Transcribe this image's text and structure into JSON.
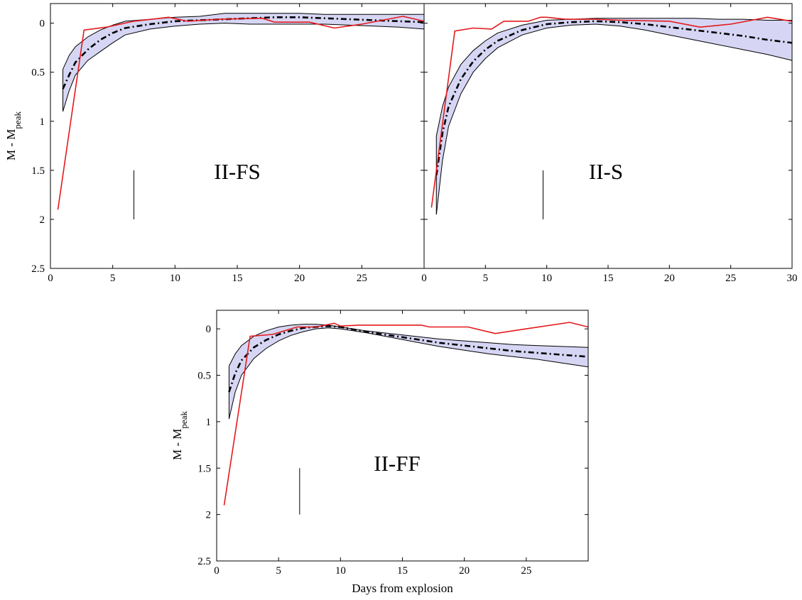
{
  "chart_data": [
    {
      "type": "line",
      "annotation": "II-FS",
      "ylabel": "M - M",
      "ylabel_sub": "peak",
      "xlabel": "",
      "xlim": [
        0,
        30
      ],
      "ylim": [
        2.5,
        -0.2
      ],
      "y_reversed": true,
      "xticks": [
        0,
        5,
        10,
        15,
        20,
        25
      ],
      "xtick_labels": [
        "0",
        "5",
        "10",
        "15",
        "20",
        "25"
      ],
      "yticks": [
        0,
        0.5,
        1,
        1.5,
        2,
        2.5
      ],
      "ytick_labels": [
        "0",
        "0.5",
        "1",
        "1.5",
        "2",
        "2.5"
      ],
      "grid": false,
      "band": {
        "color": "#c8c8f0",
        "upper": [
          [
            1.0,
            0.47
          ],
          [
            1.5,
            0.33
          ],
          [
            2,
            0.24
          ],
          [
            3,
            0.14
          ],
          [
            4,
            0.07
          ],
          [
            5,
            0.02
          ],
          [
            6,
            -0.02
          ],
          [
            8,
            -0.04
          ],
          [
            10,
            -0.06
          ],
          [
            12,
            -0.07
          ],
          [
            14,
            -0.1
          ],
          [
            16,
            -0.1
          ],
          [
            18,
            -0.1
          ],
          [
            20,
            -0.1
          ],
          [
            22,
            -0.09
          ],
          [
            24,
            -0.09
          ],
          [
            26,
            -0.09
          ],
          [
            28,
            -0.09
          ],
          [
            30,
            -0.09
          ]
        ],
        "lower": [
          [
            1.0,
            0.9
          ],
          [
            1.5,
            0.69
          ],
          [
            2,
            0.53
          ],
          [
            3,
            0.38
          ],
          [
            4,
            0.29
          ],
          [
            5,
            0.2
          ],
          [
            6,
            0.12
          ],
          [
            8,
            0.06
          ],
          [
            10,
            0.03
          ],
          [
            12,
            0.01
          ],
          [
            14,
            0.0
          ],
          [
            16,
            0.01
          ],
          [
            18,
            0.01
          ],
          [
            20,
            0.01
          ],
          [
            22,
            0.01
          ],
          [
            24,
            0.02
          ],
          [
            26,
            0.03
          ],
          [
            28,
            0.04
          ],
          [
            30,
            0.06
          ]
        ]
      },
      "series": [
        {
          "color": "#000000",
          "dash": "dashdot",
          "width": 2.6,
          "points": [
            [
              1,
              0.67
            ],
            [
              1.5,
              0.53
            ],
            [
              2,
              0.4
            ],
            [
              3,
              0.27
            ],
            [
              4,
              0.17
            ],
            [
              5,
              0.1
            ],
            [
              6,
              0.05
            ],
            [
              8,
              0.01
            ],
            [
              10,
              -0.02
            ],
            [
              12,
              -0.03
            ],
            [
              14,
              -0.04
            ],
            [
              16,
              -0.05
            ],
            [
              18,
              -0.06
            ],
            [
              20,
              -0.06
            ],
            [
              22,
              -0.05
            ],
            [
              24,
              -0.04
            ],
            [
              26,
              -0.03
            ],
            [
              28,
              -0.02
            ],
            [
              30,
              -0.01
            ]
          ]
        },
        {
          "color": "#e41a1c",
          "dash": "solid",
          "width": 1.6,
          "points": [
            [
              0.6,
              1.9
            ],
            [
              2.7,
              0.07
            ],
            [
              4.5,
              0.04
            ],
            [
              6.7,
              -0.02
            ],
            [
              9.5,
              -0.06
            ],
            [
              11,
              -0.02
            ],
            [
              13.5,
              -0.04
            ],
            [
              17,
              -0.05
            ],
            [
              18,
              -0.01
            ],
            [
              20.8,
              -0.01
            ],
            [
              22.8,
              0.05
            ],
            [
              25,
              0.01
            ],
            [
              28.3,
              -0.07
            ],
            [
              30,
              -0.02
            ]
          ]
        }
      ],
      "marker_line": {
        "x": 6.7,
        "y1": 1.5,
        "y2": 2.0
      }
    },
    {
      "type": "line",
      "annotation": "II-S",
      "ylabel": "",
      "xlabel": "",
      "xlim": [
        0,
        30
      ],
      "ylim": [
        2.5,
        -0.2
      ],
      "y_reversed": true,
      "xticks": [
        0,
        5,
        10,
        15,
        20,
        25,
        30
      ],
      "xtick_labels": [
        "0",
        "5",
        "10",
        "15",
        "20",
        "25",
        "30"
      ],
      "yticks": [
        0,
        0.5,
        1,
        1.5,
        2,
        2.5
      ],
      "ytick_labels": [],
      "grid": false,
      "band": {
        "color": "#c8c8f0",
        "upper": [
          [
            1.0,
            1.15
          ],
          [
            1.5,
            0.85
          ],
          [
            2,
            0.65
          ],
          [
            3,
            0.42
          ],
          [
            4,
            0.28
          ],
          [
            5,
            0.18
          ],
          [
            6,
            0.1
          ],
          [
            8,
            0.02
          ],
          [
            10,
            -0.03
          ],
          [
            12,
            -0.04
          ],
          [
            14,
            -0.05
          ],
          [
            16,
            -0.05
          ],
          [
            18,
            -0.05
          ],
          [
            20,
            -0.05
          ],
          [
            22,
            -0.05
          ],
          [
            24,
            -0.04
          ],
          [
            26,
            -0.04
          ],
          [
            28,
            -0.03
          ],
          [
            30,
            -0.03
          ]
        ],
        "lower": [
          [
            1.0,
            1.95
          ],
          [
            1.5,
            1.4
          ],
          [
            2,
            1.05
          ],
          [
            3,
            0.72
          ],
          [
            4,
            0.5
          ],
          [
            5,
            0.36
          ],
          [
            6,
            0.25
          ],
          [
            8,
            0.12
          ],
          [
            10,
            0.05
          ],
          [
            12,
            0.02
          ],
          [
            14,
            0.01
          ],
          [
            16,
            0.03
          ],
          [
            18,
            0.07
          ],
          [
            20,
            0.12
          ],
          [
            22,
            0.17
          ],
          [
            24,
            0.22
          ],
          [
            26,
            0.27
          ],
          [
            28,
            0.32
          ],
          [
            30,
            0.38
          ]
        ]
      },
      "series": [
        {
          "color": "#000000",
          "dash": "dashdot",
          "width": 2.6,
          "points": [
            [
              1,
              1.55
            ],
            [
              1.5,
              1.12
            ],
            [
              2,
              0.85
            ],
            [
              3,
              0.57
            ],
            [
              4,
              0.39
            ],
            [
              5,
              0.27
            ],
            [
              6,
              0.18
            ],
            [
              8,
              0.07
            ],
            [
              10,
              0.01
            ],
            [
              12,
              -0.01
            ],
            [
              14,
              -0.02
            ],
            [
              16,
              -0.01
            ],
            [
              18,
              0.01
            ],
            [
              20,
              0.04
            ],
            [
              22,
              0.07
            ],
            [
              24,
              0.1
            ],
            [
              26,
              0.13
            ],
            [
              28,
              0.17
            ],
            [
              30,
              0.2
            ]
          ]
        },
        {
          "color": "#e41a1c",
          "dash": "solid",
          "width": 1.6,
          "points": [
            [
              0.6,
              1.88
            ],
            [
              2.5,
              0.08
            ],
            [
              4,
              0.05
            ],
            [
              5.5,
              0.06
            ],
            [
              6.5,
              -0.02
            ],
            [
              8.5,
              -0.02
            ],
            [
              9.5,
              -0.06
            ],
            [
              10,
              -0.06
            ],
            [
              11.5,
              -0.04
            ],
            [
              14,
              -0.04
            ],
            [
              16,
              -0.03
            ],
            [
              20,
              -0.02
            ],
            [
              22.5,
              0.04
            ],
            [
              25,
              0.01
            ],
            [
              28,
              -0.06
            ],
            [
              30,
              -0.02
            ]
          ]
        }
      ],
      "marker_line": {
        "x": 9.7,
        "y1": 1.5,
        "y2": 2.0
      }
    },
    {
      "type": "line",
      "annotation": "II-FF",
      "ylabel": "M - M",
      "ylabel_sub": "peak",
      "xlabel": "Days from explosion",
      "xlim": [
        0,
        30
      ],
      "ylim": [
        2.5,
        -0.2
      ],
      "y_reversed": true,
      "xticks": [
        0,
        5,
        10,
        15,
        20,
        25
      ],
      "xtick_labels": [
        "0",
        "5",
        "10",
        "15",
        "20",
        "25"
      ],
      "yticks": [
        0,
        0.5,
        1,
        1.5,
        2,
        2.5
      ],
      "ytick_labels": [
        "0",
        "0.5",
        "1",
        "1.5",
        "2",
        "2.5"
      ],
      "grid": false,
      "band": {
        "color": "#c8c8f0",
        "upper": [
          [
            1.0,
            0.4
          ],
          [
            1.5,
            0.27
          ],
          [
            2,
            0.18
          ],
          [
            3,
            0.08
          ],
          [
            4,
            0.02
          ],
          [
            5,
            -0.02
          ],
          [
            6,
            -0.04
          ],
          [
            7,
            -0.05
          ],
          [
            8,
            -0.05
          ],
          [
            9,
            -0.04
          ],
          [
            10,
            -0.02
          ],
          [
            12,
            0.02
          ],
          [
            14,
            0.05
          ],
          [
            16,
            0.08
          ],
          [
            18,
            0.11
          ],
          [
            20,
            0.13
          ],
          [
            22,
            0.15
          ],
          [
            24,
            0.17
          ],
          [
            26,
            0.18
          ],
          [
            28,
            0.19
          ],
          [
            30,
            0.2
          ]
        ],
        "lower": [
          [
            1.0,
            0.97
          ],
          [
            1.5,
            0.68
          ],
          [
            2,
            0.5
          ],
          [
            3,
            0.32
          ],
          [
            4,
            0.21
          ],
          [
            5,
            0.13
          ],
          [
            6,
            0.07
          ],
          [
            7,
            0.03
          ],
          [
            8,
            0.0
          ],
          [
            9,
            -0.01
          ],
          [
            10,
            0.0
          ],
          [
            12,
            0.04
          ],
          [
            14,
            0.09
          ],
          [
            16,
            0.14
          ],
          [
            18,
            0.19
          ],
          [
            20,
            0.23
          ],
          [
            22,
            0.27
          ],
          [
            24,
            0.3
          ],
          [
            26,
            0.33
          ],
          [
            28,
            0.37
          ],
          [
            30,
            0.41
          ]
        ]
      },
      "series": [
        {
          "color": "#000000",
          "dash": "dashdot",
          "width": 2.6,
          "points": [
            [
              1,
              0.68
            ],
            [
              1.5,
              0.48
            ],
            [
              2,
              0.34
            ],
            [
              3,
              0.2
            ],
            [
              4,
              0.12
            ],
            [
              5,
              0.06
            ],
            [
              6,
              0.02
            ],
            [
              7,
              -0.01
            ],
            [
              8,
              -0.02
            ],
            [
              9,
              -0.03
            ],
            [
              10,
              -0.02
            ],
            [
              12,
              0.03
            ],
            [
              14,
              0.07
            ],
            [
              16,
              0.11
            ],
            [
              18,
              0.15
            ],
            [
              20,
              0.18
            ],
            [
              22,
              0.21
            ],
            [
              24,
              0.24
            ],
            [
              26,
              0.26
            ],
            [
              28,
              0.28
            ],
            [
              30,
              0.3
            ]
          ]
        },
        {
          "color": "#e41a1c",
          "dash": "solid",
          "width": 1.6,
          "points": [
            [
              0.6,
              1.9
            ],
            [
              2.7,
              0.08
            ],
            [
              4.5,
              0.06
            ],
            [
              6.5,
              -0.02
            ],
            [
              8,
              -0.02
            ],
            [
              9.5,
              -0.06
            ],
            [
              10,
              -0.03
            ],
            [
              11.5,
              -0.04
            ],
            [
              16.5,
              -0.04
            ],
            [
              17.2,
              -0.02
            ],
            [
              17.5,
              -0.02
            ],
            [
              20.3,
              -0.02
            ],
            [
              22.5,
              0.05
            ],
            [
              25,
              0.0
            ],
            [
              28.5,
              -0.07
            ],
            [
              30,
              -0.02
            ]
          ]
        }
      ],
      "marker_line": {
        "x": 6.7,
        "y1": 1.5,
        "y2": 2.0
      }
    }
  ]
}
